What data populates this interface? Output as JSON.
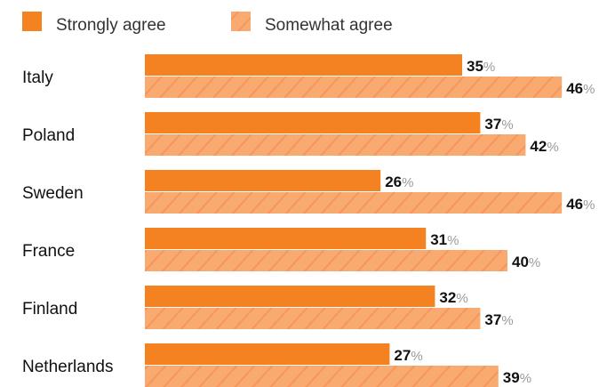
{
  "legend": {
    "items": [
      {
        "label": "Strongly agree",
        "style": "solid",
        "color": "#F58220"
      },
      {
        "label": "Somewhat agree",
        "style": "hatched",
        "color": "#F9AA70",
        "hatch_color": "#F7965A"
      }
    ]
  },
  "value_suffix": "%",
  "chart_data": {
    "type": "bar",
    "orientation": "horizontal",
    "categories": [
      "Italy",
      "Poland",
      "Sweden",
      "France",
      "Finland",
      "Netherlands"
    ],
    "series": [
      {
        "name": "Strongly agree",
        "values": [
          35,
          37,
          26,
          31,
          32,
          27
        ],
        "color": "#F58220"
      },
      {
        "name": "Somewhat agree",
        "values": [
          46,
          42,
          46,
          40,
          37,
          39
        ],
        "color": "#F9AA70"
      }
    ],
    "data_labels": true,
    "grid": false,
    "legend_position": "top-left"
  }
}
